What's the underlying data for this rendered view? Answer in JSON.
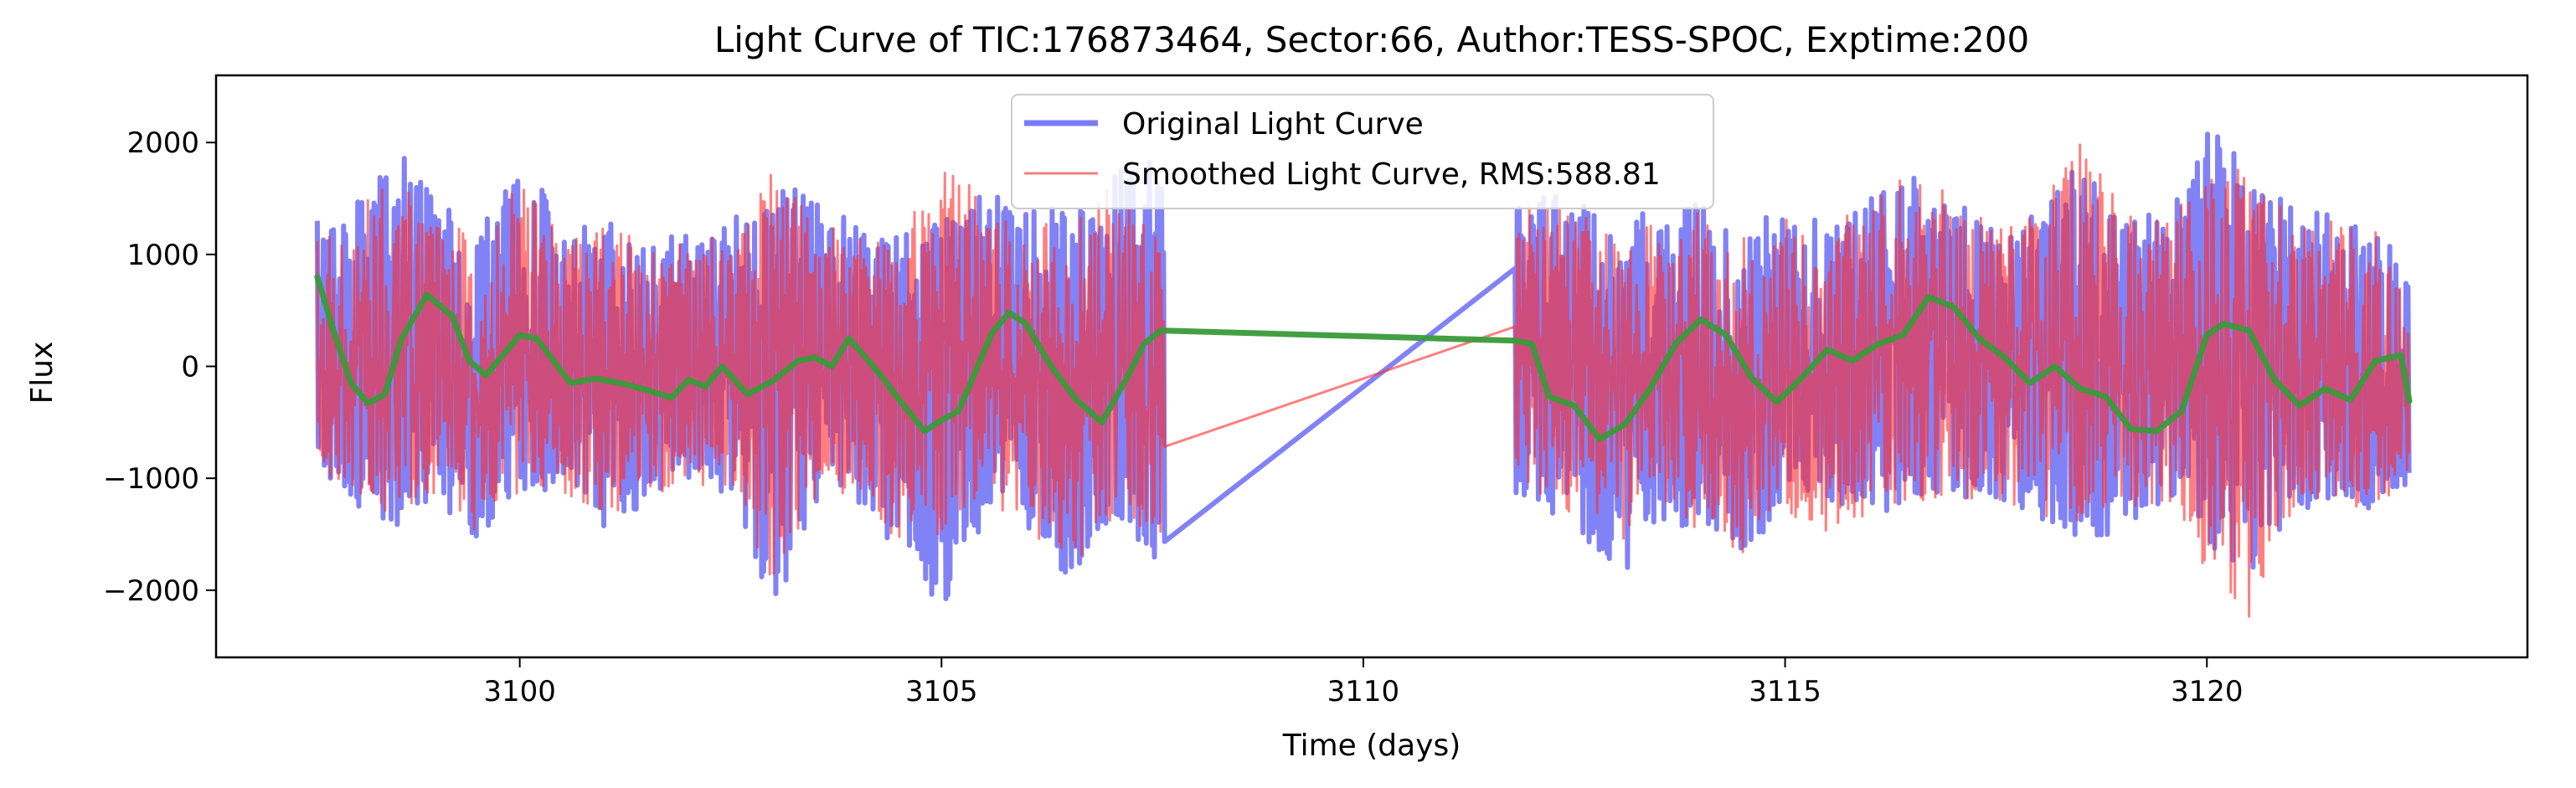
{
  "chart_data": {
    "type": "line",
    "title": "Light Curve of TIC:176873464, Sector:66, Author:TESS-SPOC, Exptime:200",
    "xlabel": "Time (days)",
    "ylabel": "Flux",
    "xlim": [
      3096.4,
      3123.8
    ],
    "ylim": [
      -2600,
      2600
    ],
    "xticks": [
      3100,
      3105,
      3110,
      3115,
      3120
    ],
    "xtick_labels": [
      "3100",
      "3105",
      "3110",
      "3115",
      "3120"
    ],
    "yticks": [
      2000,
      1000,
      0,
      -1000,
      -2000
    ],
    "ytick_labels": [
      "2000",
      "1000",
      "0",
      "−1000",
      "−2000"
    ],
    "grid": false,
    "legend_position": "top-center",
    "gap": [
      3107.65,
      3111.8
    ],
    "series": [
      {
        "name": "Original Light Curve",
        "color": "#7b7bf7",
        "envelope": {
          "x": [
            3097.6,
            3098.0,
            3098.5,
            3099.0,
            3099.5,
            3100.0,
            3100.5,
            3101.0,
            3101.5,
            3102.0,
            3102.5,
            3103.0,
            3103.5,
            3104.0,
            3104.5,
            3105.0,
            3105.5,
            3106.0,
            3106.5,
            3107.0,
            3107.6,
            3111.9,
            3112.5,
            3113.0,
            3113.5,
            3114.0,
            3114.5,
            3115.0,
            3115.5,
            3116.0,
            3116.5,
            3117.0,
            3117.5,
            3118.0,
            3118.5,
            3119.0,
            3119.5,
            3120.0,
            3120.5,
            3121.0,
            3121.5,
            3122.0,
            3122.4
          ],
          "max": [
            1350,
            1400,
            2100,
            1600,
            1200,
            2000,
            1300,
            1400,
            1200,
            1200,
            1300,
            1700,
            1600,
            1300,
            1300,
            1500,
            1600,
            1700,
            1400,
            1800,
            2000,
            1600,
            1600,
            1400,
            1400,
            1500,
            1300,
            1400,
            1300,
            1600,
            1900,
            1500,
            1300,
            1400,
            1900,
            1400,
            1400,
            2350,
            1900,
            1500,
            1400,
            1200,
            900
          ],
          "min": [
            -1000,
            -1300,
            -1550,
            -1200,
            -1600,
            -1300,
            -1100,
            -1500,
            -1300,
            -1000,
            -1200,
            -2300,
            -1300,
            -1300,
            -1700,
            -2350,
            -1400,
            -1500,
            -2000,
            -1600,
            -1800,
            -1200,
            -1500,
            -2050,
            -1400,
            -1600,
            -1800,
            -1300,
            -1300,
            -1400,
            -1300,
            -1200,
            -1300,
            -1400,
            -1700,
            -1500,
            -1300,
            -1700,
            -2050,
            -1500,
            -1300,
            -1300,
            -1150
          ]
        }
      },
      {
        "name": "Smoothed Light Curve, RMS:588.81",
        "color": "#f08080",
        "envelope": {
          "x": [
            3097.6,
            3098.0,
            3098.5,
            3099.0,
            3099.5,
            3100.0,
            3100.5,
            3101.0,
            3101.5,
            3102.0,
            3102.5,
            3103.0,
            3103.5,
            3104.0,
            3104.5,
            3105.0,
            3105.5,
            3106.0,
            3106.5,
            3107.0,
            3107.6,
            3111.9,
            3112.5,
            3113.0,
            3113.5,
            3114.0,
            3114.5,
            3115.0,
            3115.5,
            3116.0,
            3116.5,
            3117.0,
            3117.5,
            3118.0,
            3118.5,
            3119.0,
            3119.5,
            3120.0,
            3120.5,
            3121.0,
            3121.5,
            3122.0,
            3122.4
          ],
          "max": [
            1100,
            1300,
            1800,
            1400,
            1100,
            1700,
            1200,
            1300,
            1100,
            1100,
            1200,
            1800,
            1500,
            1200,
            1200,
            1900,
            1500,
            1500,
            1300,
            1700,
            1200,
            1400,
            1400,
            1300,
            1300,
            1400,
            1200,
            1300,
            1200,
            1500,
            1800,
            1500,
            1300,
            1400,
            2200,
            1400,
            1300,
            1900,
            1900,
            1400,
            1300,
            1200,
            700
          ],
          "min": [
            -900,
            -1200,
            -1400,
            -1100,
            -1500,
            -1200,
            -1100,
            -1400,
            -1200,
            -1000,
            -1100,
            -2200,
            -1200,
            -1200,
            -1600,
            -1700,
            -1300,
            -1400,
            -1900,
            -1500,
            -1700,
            -1100,
            -1400,
            -1600,
            -1300,
            -1500,
            -1700,
            -1300,
            -1500,
            -1400,
            -1300,
            -1200,
            -1300,
            -1300,
            -1600,
            -1400,
            -1300,
            -1900,
            -2350,
            -1400,
            -1300,
            -1200,
            -1000
          ]
        }
      },
      {
        "name": "",
        "color": "#3a9a3a",
        "x": [
          3097.6,
          3097.8,
          3098.0,
          3098.2,
          3098.4,
          3098.6,
          3098.9,
          3099.2,
          3099.4,
          3099.6,
          3099.8,
          3100.0,
          3100.2,
          3100.4,
          3100.6,
          3100.9,
          3101.2,
          3101.5,
          3101.8,
          3102.0,
          3102.2,
          3102.4,
          3102.7,
          3103.0,
          3103.3,
          3103.5,
          3103.7,
          3103.9,
          3104.1,
          3104.3,
          3104.5,
          3104.8,
          3105.0,
          3105.2,
          3105.4,
          3105.6,
          3105.8,
          3106.0,
          3106.3,
          3106.6,
          3106.9,
          3107.2,
          3107.4,
          3107.6,
          3111.8,
          3112.0,
          3112.2,
          3112.5,
          3112.8,
          3113.1,
          3113.4,
          3113.7,
          3114.0,
          3114.3,
          3114.6,
          3114.9,
          3115.2,
          3115.5,
          3115.8,
          3116.1,
          3116.4,
          3116.7,
          3117.0,
          3117.3,
          3117.6,
          3117.9,
          3118.2,
          3118.5,
          3118.8,
          3119.1,
          3119.4,
          3119.7,
          3120.0,
          3120.2,
          3120.5,
          3120.8,
          3121.1,
          3121.4,
          3121.7,
          3122.0,
          3122.3,
          3122.4
        ],
        "y": [
          800,
          300,
          -150,
          -330,
          -250,
          250,
          640,
          450,
          50,
          -80,
          100,
          280,
          250,
          50,
          -150,
          -110,
          -150,
          -210,
          -280,
          -120,
          -180,
          0,
          -250,
          -130,
          50,
          80,
          0,
          250,
          80,
          -100,
          -300,
          -580,
          -480,
          -400,
          -50,
          300,
          480,
          380,
          0,
          -300,
          -500,
          -100,
          200,
          320,
          230,
          200,
          -270,
          -350,
          -650,
          -520,
          -200,
          200,
          420,
          280,
          -100,
          -320,
          -100,
          150,
          50,
          200,
          280,
          620,
          530,
          250,
          80,
          -150,
          0,
          -200,
          -270,
          -560,
          -580,
          -400,
          280,
          380,
          320,
          -120,
          -350,
          -200,
          -300,
          50,
          100,
          -310
        ]
      }
    ]
  }
}
